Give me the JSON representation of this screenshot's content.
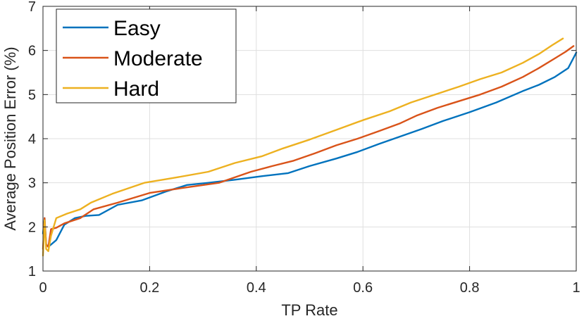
{
  "chart_data": {
    "type": "line",
    "title": "",
    "xlabel": "TP Rate",
    "ylabel": "Average Position Error (%)",
    "xlim": [
      0,
      1
    ],
    "ylim": [
      1,
      7
    ],
    "xticks": [
      0,
      0.2,
      0.4,
      0.6,
      0.8,
      1
    ],
    "xtick_labels": [
      "0",
      "0.2",
      "0.4",
      "0.6",
      "0.8",
      "1"
    ],
    "yticks": [
      1,
      2,
      3,
      4,
      5,
      6,
      7
    ],
    "ytick_labels": [
      "1",
      "2",
      "3",
      "4",
      "5",
      "6",
      "7"
    ],
    "grid": true,
    "legend_position": "top-left",
    "series": [
      {
        "name": "Easy",
        "color": "#0072BD",
        "x": [
          0,
          0.003,
          0.006,
          0.01,
          0.015,
          0.025,
          0.04,
          0.06,
          0.08,
          0.105,
          0.14,
          0.185,
          0.23,
          0.27,
          0.31,
          0.36,
          0.41,
          0.46,
          0.5,
          0.55,
          0.59,
          0.63,
          0.67,
          0.71,
          0.75,
          0.8,
          0.85,
          0.9,
          0.93,
          0.96,
          0.985,
          1.0
        ],
        "y": [
          1.85,
          2.2,
          1.6,
          1.55,
          1.6,
          1.7,
          2.05,
          2.2,
          2.25,
          2.27,
          2.5,
          2.6,
          2.8,
          2.95,
          3.0,
          3.07,
          3.15,
          3.22,
          3.38,
          3.55,
          3.7,
          3.88,
          4.05,
          4.22,
          4.4,
          4.6,
          4.82,
          5.08,
          5.22,
          5.4,
          5.6,
          5.95
        ]
      },
      {
        "name": "Moderate",
        "color": "#D95319",
        "x": [
          0,
          0.003,
          0.006,
          0.01,
          0.015,
          0.025,
          0.04,
          0.07,
          0.095,
          0.14,
          0.2,
          0.26,
          0.33,
          0.39,
          0.43,
          0.47,
          0.51,
          0.55,
          0.59,
          0.63,
          0.67,
          0.7,
          0.74,
          0.78,
          0.82,
          0.86,
          0.9,
          0.93,
          0.96,
          0.98,
          0.995
        ],
        "y": [
          1.5,
          2.2,
          1.6,
          1.55,
          1.95,
          1.98,
          2.08,
          2.2,
          2.4,
          2.55,
          2.77,
          2.88,
          3.0,
          3.25,
          3.38,
          3.5,
          3.67,
          3.85,
          4.0,
          4.17,
          4.35,
          4.52,
          4.7,
          4.85,
          5.0,
          5.18,
          5.4,
          5.6,
          5.82,
          5.97,
          6.1
        ]
      },
      {
        "name": "Hard",
        "color": "#EDB120",
        "x": [
          0,
          0.003,
          0.006,
          0.01,
          0.015,
          0.025,
          0.045,
          0.07,
          0.09,
          0.13,
          0.19,
          0.25,
          0.31,
          0.36,
          0.41,
          0.45,
          0.5,
          0.55,
          0.6,
          0.65,
          0.69,
          0.74,
          0.78,
          0.82,
          0.86,
          0.9,
          0.93,
          0.955,
          0.975
        ],
        "y": [
          1.35,
          2.15,
          1.5,
          1.45,
          1.8,
          2.2,
          2.3,
          2.4,
          2.55,
          2.75,
          3.0,
          3.12,
          3.25,
          3.45,
          3.6,
          3.78,
          3.98,
          4.2,
          4.42,
          4.62,
          4.82,
          5.02,
          5.18,
          5.35,
          5.5,
          5.72,
          5.92,
          6.12,
          6.27
        ]
      }
    ]
  }
}
